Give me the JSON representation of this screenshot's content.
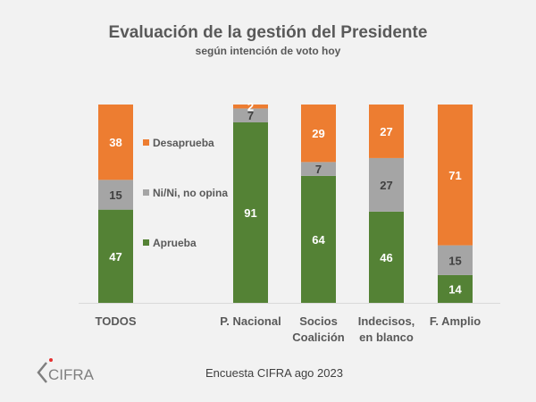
{
  "chart_data": {
    "type": "bar",
    "stacked": true,
    "title": "Evaluación de la gestión del Presidente",
    "subtitle": "según intención de voto hoy",
    "categories": [
      [
        "TODOS"
      ],
      [
        "P. Nacional"
      ],
      [
        "Socios",
        "Coalición"
      ],
      [
        "Indecisos,",
        "en blanco"
      ],
      [
        "F. Amplio"
      ]
    ],
    "series": [
      {
        "name": "Aprueba",
        "color": "#548235",
        "label_color": "#ffffff",
        "values": [
          47,
          91,
          64,
          46,
          14
        ]
      },
      {
        "name": "Ni/Ni, no opina",
        "color": "#a5a5a5",
        "label_color": "#404040",
        "values": [
          15,
          7,
          7,
          27,
          15
        ]
      },
      {
        "name": "Desaprueba",
        "color": "#ed7d31",
        "label_color": "#ffffff",
        "values": [
          38,
          2,
          29,
          27,
          71
        ]
      }
    ],
    "legend": {
      "placement": "right-of-first-bar",
      "order": [
        "Desaprueba",
        "Ni/Ni, no opina",
        "Aprueba"
      ]
    },
    "ylim": [
      0,
      100
    ],
    "xlabel": "",
    "ylabel": "",
    "grid": false
  },
  "footer": {
    "source": "Encuesta CIFRA ago 2023",
    "logo_text": "CIFRA"
  }
}
